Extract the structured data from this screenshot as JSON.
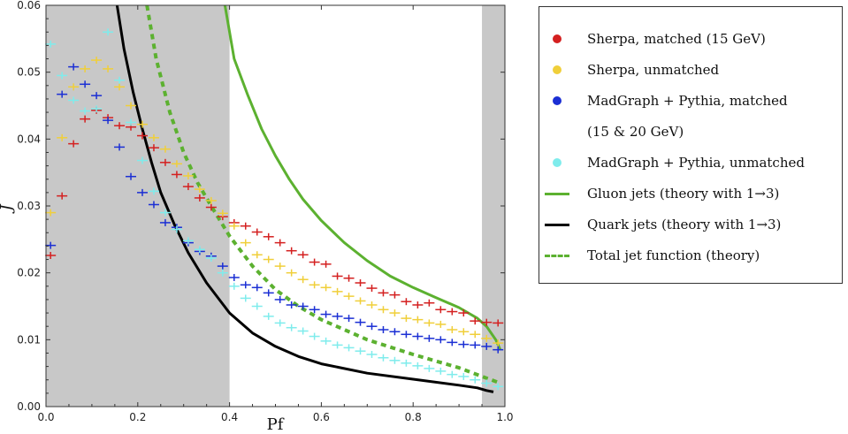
{
  "chart_data": {
    "type": "scatter",
    "xlabel": "Pf",
    "ylabel": "J",
    "xlim": [
      0.0,
      1.0
    ],
    "ylim": [
      0.0,
      0.06
    ],
    "x_ticks": [
      "0.0",
      "0.2",
      "0.4",
      "0.6",
      "0.8",
      "1.0"
    ],
    "y_ticks": [
      "0.00",
      "0.01",
      "0.02",
      "0.03",
      "0.04",
      "0.05",
      "0.06"
    ],
    "x_tick_values": [
      0.0,
      0.2,
      0.4,
      0.6,
      0.8,
      1.0
    ],
    "y_tick_values": [
      0.0,
      0.01,
      0.02,
      0.03,
      0.04,
      0.05,
      0.06
    ],
    "shaded_regions": [
      [
        0.0,
        0.4
      ],
      [
        0.95,
        1.0
      ]
    ],
    "legend_position": "outside-right",
    "series": [
      {
        "name": "Sherpa, matched (15 GeV)",
        "kind": "points",
        "color": "#d42020",
        "x": [
          0.01,
          0.035,
          0.06,
          0.085,
          0.11,
          0.135,
          0.16,
          0.185,
          0.21,
          0.235,
          0.26,
          0.285,
          0.31,
          0.335,
          0.36,
          0.385,
          0.41,
          0.435,
          0.46,
          0.485,
          0.51,
          0.535,
          0.56,
          0.585,
          0.61,
          0.635,
          0.66,
          0.685,
          0.71,
          0.735,
          0.76,
          0.785,
          0.81,
          0.835,
          0.86,
          0.885,
          0.91,
          0.935,
          0.96,
          0.985
        ],
        "y": [
          0.0226,
          0.0315,
          0.0393,
          0.043,
          0.0443,
          0.0432,
          0.042,
          0.0418,
          0.0405,
          0.0387,
          0.0365,
          0.0347,
          0.0329,
          0.0312,
          0.0298,
          0.0284,
          0.0275,
          0.027,
          0.0261,
          0.0254,
          0.0245,
          0.0233,
          0.0227,
          0.0216,
          0.0213,
          0.0195,
          0.0192,
          0.0185,
          0.0177,
          0.017,
          0.0167,
          0.0157,
          0.0152,
          0.0155,
          0.0145,
          0.0142,
          0.014,
          0.0128,
          0.0126,
          0.0125
        ]
      },
      {
        "name": "Sherpa, unmatched",
        "kind": "points",
        "color": "#f0cf3a",
        "x": [
          0.01,
          0.035,
          0.06,
          0.085,
          0.11,
          0.135,
          0.16,
          0.185,
          0.21,
          0.235,
          0.26,
          0.285,
          0.31,
          0.335,
          0.36,
          0.385,
          0.41,
          0.435,
          0.46,
          0.485,
          0.51,
          0.535,
          0.56,
          0.585,
          0.61,
          0.635,
          0.66,
          0.685,
          0.71,
          0.735,
          0.76,
          0.785,
          0.81,
          0.835,
          0.86,
          0.885,
          0.91,
          0.935,
          0.96,
          0.985
        ],
        "y": [
          0.029,
          0.0402,
          0.0478,
          0.0505,
          0.0518,
          0.0505,
          0.0478,
          0.045,
          0.0422,
          0.0402,
          0.0385,
          0.0363,
          0.0345,
          0.0325,
          0.0308,
          0.0289,
          0.027,
          0.0245,
          0.0227,
          0.022,
          0.021,
          0.02,
          0.019,
          0.0182,
          0.0178,
          0.0172,
          0.0165,
          0.0158,
          0.0152,
          0.0145,
          0.014,
          0.0132,
          0.013,
          0.0125,
          0.0123,
          0.0115,
          0.0112,
          0.0108,
          0.0102,
          0.0095
        ]
      },
      {
        "name": "MadGraph + Pythia, matched",
        "kind": "points",
        "color": "#1b2fd4",
        "x": [
          0.01,
          0.035,
          0.06,
          0.085,
          0.11,
          0.135,
          0.16,
          0.185,
          0.21,
          0.235,
          0.26,
          0.285,
          0.31,
          0.335,
          0.36,
          0.385,
          0.41,
          0.435,
          0.46,
          0.485,
          0.51,
          0.535,
          0.56,
          0.585,
          0.61,
          0.635,
          0.66,
          0.685,
          0.71,
          0.735,
          0.76,
          0.785,
          0.81,
          0.835,
          0.86,
          0.885,
          0.91,
          0.935,
          0.96,
          0.985
        ],
        "y": [
          0.0241,
          0.0467,
          0.0508,
          0.0482,
          0.0465,
          0.0428,
          0.0388,
          0.0344,
          0.032,
          0.0302,
          0.0275,
          0.0268,
          0.0245,
          0.0232,
          0.0225,
          0.021,
          0.0193,
          0.0182,
          0.0178,
          0.017,
          0.016,
          0.0152,
          0.015,
          0.0145,
          0.0138,
          0.0135,
          0.0132,
          0.0126,
          0.012,
          0.0115,
          0.0112,
          0.0108,
          0.0105,
          0.0102,
          0.01,
          0.0096,
          0.0093,
          0.0092,
          0.009,
          0.0085
        ]
      },
      {
        "name": "MadGraph + Pythia, unmatched",
        "kind": "points",
        "color": "#7fecec",
        "x": [
          0.01,
          0.035,
          0.06,
          0.085,
          0.11,
          0.135,
          0.16,
          0.185,
          0.21,
          0.235,
          0.26,
          0.285,
          0.31,
          0.335,
          0.36,
          0.385,
          0.41,
          0.435,
          0.46,
          0.485,
          0.51,
          0.535,
          0.56,
          0.585,
          0.61,
          0.635,
          0.66,
          0.685,
          0.71,
          0.735,
          0.76,
          0.785,
          0.81,
          0.835,
          0.86,
          0.885,
          0.91,
          0.935,
          0.96,
          0.985
        ],
        "y": [
          0.0542,
          0.0495,
          0.0458,
          0.0442,
          0.0445,
          0.056,
          0.0488,
          0.0425,
          0.0368,
          0.0322,
          0.029,
          0.0265,
          0.0248,
          0.0235,
          0.0222,
          0.02,
          0.018,
          0.0162,
          0.015,
          0.0135,
          0.0125,
          0.0118,
          0.0113,
          0.0105,
          0.0098,
          0.0092,
          0.0088,
          0.0083,
          0.0078,
          0.0073,
          0.0069,
          0.0065,
          0.0061,
          0.0057,
          0.0053,
          0.0048,
          0.0045,
          0.004,
          0.0035,
          0.003
        ]
      },
      {
        "name": "Gluon jets (theory with 1→3)",
        "kind": "line",
        "style": "solid",
        "color": "#5cb130",
        "x": [
          0.39,
          0.41,
          0.44,
          0.47,
          0.5,
          0.53,
          0.56,
          0.6,
          0.65,
          0.7,
          0.75,
          0.8,
          0.85,
          0.9,
          0.94,
          0.96,
          0.98,
          0.99
        ],
        "y": [
          0.06,
          0.052,
          0.0465,
          0.0415,
          0.0375,
          0.034,
          0.031,
          0.0278,
          0.0245,
          0.0218,
          0.0195,
          0.0178,
          0.0163,
          0.0148,
          0.0132,
          0.012,
          0.01,
          0.0085
        ]
      },
      {
        "name": "Quark jets (theory with 1→3)",
        "kind": "line",
        "style": "solid",
        "color": "#000000",
        "x": [
          0.155,
          0.17,
          0.19,
          0.21,
          0.23,
          0.25,
          0.28,
          0.31,
          0.35,
          0.4,
          0.45,
          0.5,
          0.55,
          0.6,
          0.7,
          0.8,
          0.9,
          0.94,
          0.96,
          0.975
        ],
        "y": [
          0.06,
          0.0535,
          0.047,
          0.0415,
          0.0365,
          0.032,
          0.0272,
          0.023,
          0.0185,
          0.014,
          0.011,
          0.009,
          0.0075,
          0.0064,
          0.005,
          0.0041,
          0.0032,
          0.0028,
          0.0024,
          0.0022
        ]
      },
      {
        "name": "Total jet function (theory)",
        "kind": "line",
        "style": "dashed",
        "color": "#5cb130",
        "x": [
          0.22,
          0.24,
          0.27,
          0.3,
          0.33,
          0.36,
          0.4,
          0.45,
          0.5,
          0.55,
          0.6,
          0.7,
          0.8,
          0.9,
          0.95,
          0.99
        ],
        "y": [
          0.06,
          0.052,
          0.044,
          0.038,
          0.0335,
          0.03,
          0.0255,
          0.021,
          0.0175,
          0.015,
          0.013,
          0.01,
          0.0078,
          0.0058,
          0.0045,
          0.0035
        ]
      }
    ]
  },
  "legend": {
    "entries": [
      {
        "kind": "dot",
        "color": "#d42020",
        "label": "Sherpa, matched (15 GeV)"
      },
      {
        "kind": "dot",
        "color": "#f0cf3a",
        "label": "Sherpa, unmatched"
      },
      {
        "kind": "dot",
        "color": "#1b2fd4",
        "label": "MadGraph + Pythia, matched"
      },
      {
        "kind": "none",
        "color": "",
        "label": "(15 & 20 GeV)"
      },
      {
        "kind": "dot",
        "color": "#7fecec",
        "label": "MadGraph + Pythia, unmatched"
      },
      {
        "kind": "line",
        "color": "#5cb130",
        "label": "Gluon jets (theory with 1→3)"
      },
      {
        "kind": "line",
        "color": "#000000",
        "label": "Quark jets (theory with 1→3)"
      },
      {
        "kind": "dash",
        "color": "#5cb130",
        "label": "Total jet function (theory)"
      }
    ]
  },
  "colors": {
    "shade": "#c8c8c8",
    "axis": "#333333"
  }
}
